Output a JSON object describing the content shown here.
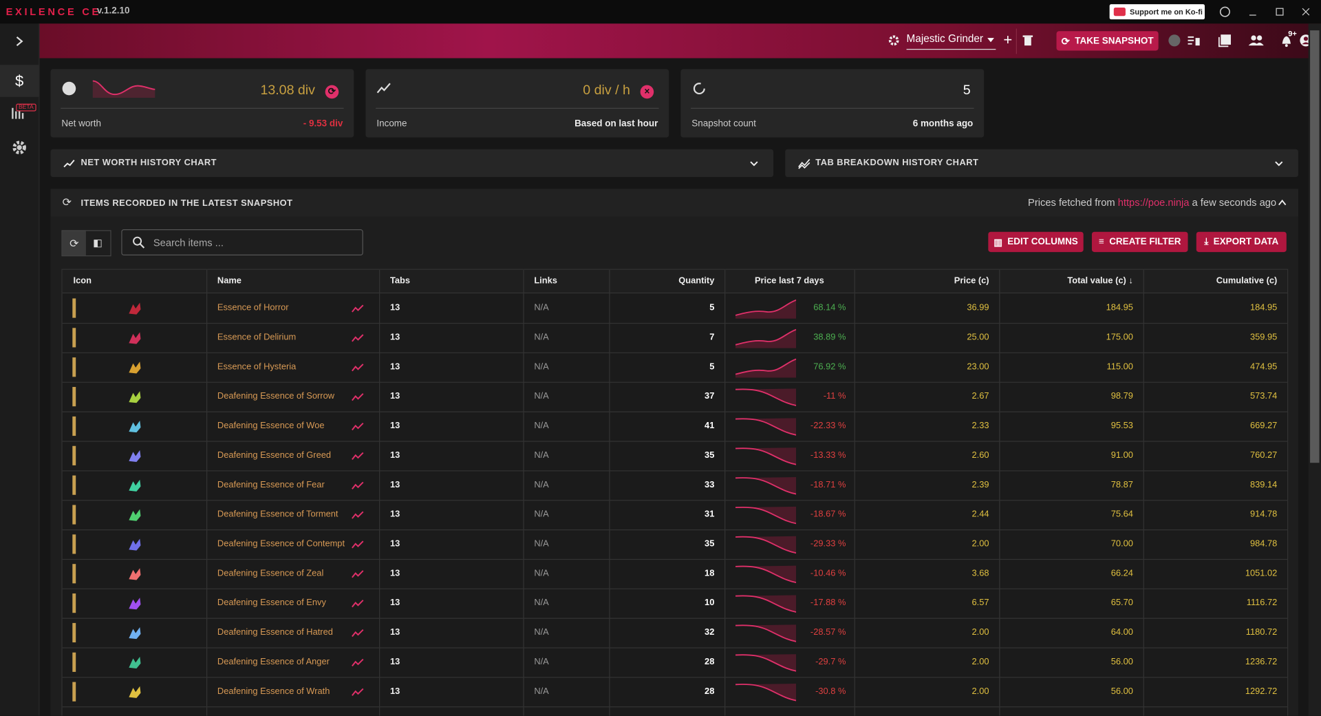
{
  "app": {
    "title": "EXILENCE CE",
    "version": "v.1.2.10",
    "support": "Support me on Ko-fi",
    "beta": "BETA"
  },
  "toolbar": {
    "profile": "Majestic Grinder",
    "snapshot_button": "TAKE SNAPSHOT",
    "notification_count": "9+"
  },
  "cards": [
    {
      "value": "13.08 div",
      "label": "Net worth",
      "detail": "- 9.53 div"
    },
    {
      "value": "0 div / h",
      "label": "Income",
      "detail": "Based on last hour"
    },
    {
      "value": "5",
      "label": "Snapshot count",
      "detail": "6 months ago"
    }
  ],
  "panels": {
    "net_worth_chart": "NET WORTH HISTORY CHART",
    "tab_breakdown_chart": "TAB BREAKDOWN HISTORY CHART",
    "items": "ITEMS RECORDED IN THE LATEST SNAPSHOT",
    "prices_prefix": "Prices fetched from",
    "prices_link": "https://poe.ninja",
    "prices_suffix": "a few seconds ago"
  },
  "controls": {
    "search_placeholder": "Search items ...",
    "edit_columns": "EDIT COLUMNS",
    "create_filter": "CREATE FILTER",
    "export_data": "EXPORT DATA"
  },
  "table": {
    "columns": [
      "Icon",
      "Name",
      "Tabs",
      "Links",
      "Quantity",
      "Price last 7 days",
      "Price (c)",
      "Total value (c)",
      "Cumulative (c)"
    ],
    "icon_colors": [
      "#c0283a",
      "#d0305a",
      "#d8a030",
      "#a8d040",
      "#60c0e0",
      "#8080f0",
      "#40d0a0",
      "#50d070",
      "#7070e8",
      "#f07070",
      "#a050f0",
      "#70b0f0",
      "#40c090",
      "#e0c040"
    ],
    "rows": [
      [
        "Essence of Horror",
        "13",
        "N/A",
        "5",
        "68.14 %",
        "36.99",
        "184.95",
        "184.95"
      ],
      [
        "Essence of Delirium",
        "13",
        "N/A",
        "7",
        "38.89 %",
        "25.00",
        "175.00",
        "359.95"
      ],
      [
        "Essence of Hysteria",
        "13",
        "N/A",
        "5",
        "76.92 %",
        "23.00",
        "115.00",
        "474.95"
      ],
      [
        "Deafening Essence of Sorrow",
        "13",
        "N/A",
        "37",
        "-11 %",
        "2.67",
        "98.79",
        "573.74"
      ],
      [
        "Deafening Essence of Woe",
        "13",
        "N/A",
        "41",
        "-22.33 %",
        "2.33",
        "95.53",
        "669.27"
      ],
      [
        "Deafening Essence of Greed",
        "13",
        "N/A",
        "35",
        "-13.33 %",
        "2.60",
        "91.00",
        "760.27"
      ],
      [
        "Deafening Essence of Fear",
        "13",
        "N/A",
        "33",
        "-18.71 %",
        "2.39",
        "78.87",
        "839.14"
      ],
      [
        "Deafening Essence of Torment",
        "13",
        "N/A",
        "31",
        "-18.67 %",
        "2.44",
        "75.64",
        "914.78"
      ],
      [
        "Deafening Essence of Contempt",
        "13",
        "N/A",
        "35",
        "-29.33 %",
        "2.00",
        "70.00",
        "984.78"
      ],
      [
        "Deafening Essence of Zeal",
        "13",
        "N/A",
        "18",
        "-10.46 %",
        "3.68",
        "66.24",
        "1051.02"
      ],
      [
        "Deafening Essence of Envy",
        "13",
        "N/A",
        "10",
        "-17.88 %",
        "6.57",
        "65.70",
        "1116.72"
      ],
      [
        "Deafening Essence of Hatred",
        "13",
        "N/A",
        "32",
        "-28.57 %",
        "2.00",
        "64.00",
        "1180.72"
      ],
      [
        "Deafening Essence of Anger",
        "13",
        "N/A",
        "28",
        "-29.7 %",
        "2.00",
        "56.00",
        "1236.72"
      ],
      [
        "Deafening Essence of Wrath",
        "13",
        "N/A",
        "28",
        "-30.8 %",
        "2.00",
        "56.00",
        "1292.72"
      ]
    ]
  }
}
